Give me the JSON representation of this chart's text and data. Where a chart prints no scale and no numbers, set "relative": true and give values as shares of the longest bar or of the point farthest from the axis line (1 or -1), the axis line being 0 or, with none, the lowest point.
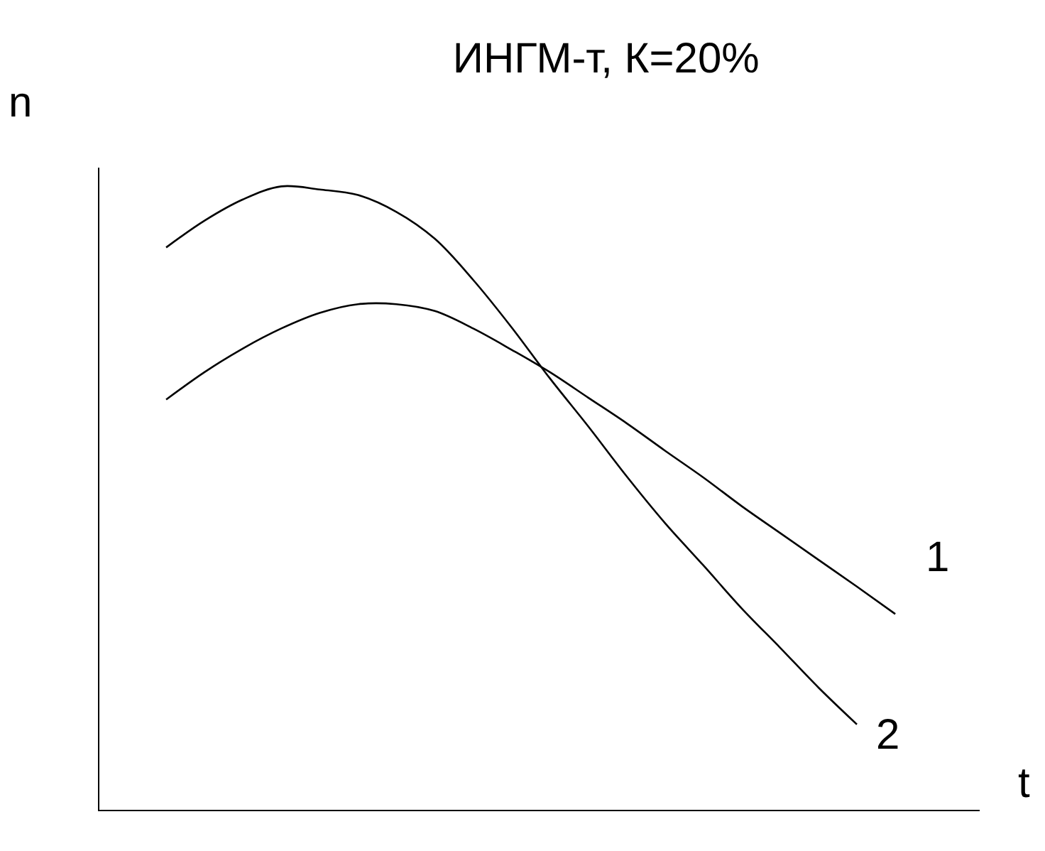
{
  "chart_data": {
    "type": "line",
    "title": "ИНГМ-т, К=20%",
    "xlabel": "t",
    "ylabel": "n",
    "relative": true,
    "legend": false,
    "marker": "none",
    "line_style": "solid",
    "categories": [
      null,
      null,
      null,
      null,
      null,
      null,
      null,
      null,
      null,
      null,
      null,
      null,
      null,
      null,
      null,
      null,
      null,
      null,
      null,
      null
    ],
    "series": [
      {
        "name": "1",
        "color": "#000000",
        "values": [
          0.658,
          0.702,
          0.74,
          0.772,
          0.797,
          0.811,
          0.811,
          0.8,
          0.772,
          0.738,
          0.702,
          0.661,
          0.62,
          0.576,
          0.533,
          0.487,
          0.444,
          0.401,
          0.358,
          0.314
        ]
      },
      {
        "name": "2",
        "color": "#000000",
        "values": [
          0.902,
          0.945,
          0.979,
          1.0,
          0.995,
          0.986,
          0.959,
          0.916,
          0.85,
          0.774,
          0.692,
          0.615,
          0.535,
          0.46,
          0.392,
          0.323,
          0.26,
          0.196,
          0.137,
          null
        ]
      }
    ]
  }
}
